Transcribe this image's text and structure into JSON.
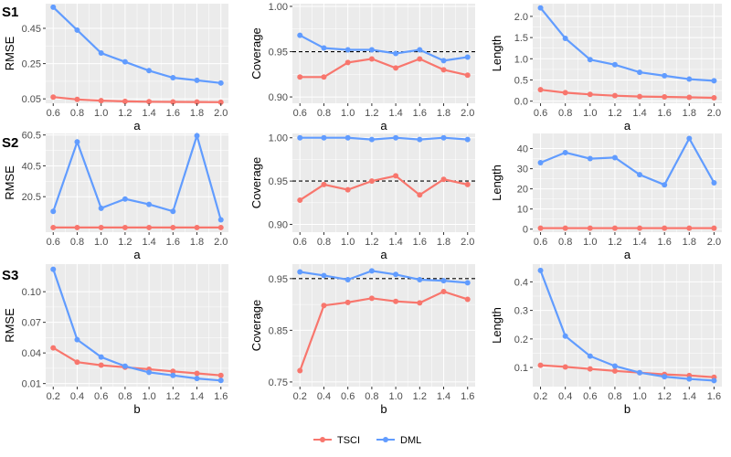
{
  "legend": {
    "items": [
      {
        "name": "TSCI",
        "color": "#F8766D"
      },
      {
        "name": "DML",
        "color": "#619CFF"
      }
    ]
  },
  "colors": {
    "panel_bg": "#EBEBEB",
    "grid": "#FFFFFF",
    "tick_text": "#4D4D4D"
  },
  "rows": [
    {
      "label": "S1"
    },
    {
      "label": "S2"
    },
    {
      "label": "S3"
    }
  ],
  "chart_data": [
    {
      "type": "line",
      "row": "S1",
      "ylabel": "RMSE",
      "xlabel": "a",
      "x": [
        0.6,
        0.8,
        1.0,
        1.2,
        1.4,
        1.6,
        1.8,
        2.0
      ],
      "xticks": [
        "0.6",
        "0.8",
        "1.0",
        "1.2",
        "1.4",
        "1.6",
        "1.8",
        "2.0"
      ],
      "yticks": [
        "0.05",
        "0.25",
        "0.45"
      ],
      "ytick_values": [
        0.05,
        0.25,
        0.45
      ],
      "ylim": [
        0.025,
        0.59
      ],
      "series": [
        {
          "name": "TSCI",
          "values": [
            0.06,
            0.047,
            0.04,
            0.036,
            0.034,
            0.033,
            0.032,
            0.031
          ]
        },
        {
          "name": "DML",
          "values": [
            0.57,
            0.44,
            0.31,
            0.26,
            0.21,
            0.17,
            0.155,
            0.14
          ]
        }
      ]
    },
    {
      "type": "line",
      "row": "S1",
      "ylabel": "Coverage",
      "xlabel": "a",
      "x": [
        0.6,
        0.8,
        1.0,
        1.2,
        1.4,
        1.6,
        1.8,
        2.0
      ],
      "xticks": [
        "0.6",
        "0.8",
        "1.0",
        "1.2",
        "1.4",
        "1.6",
        "1.8",
        "2.0"
      ],
      "yticks": [
        "0.90",
        "0.95",
        "1.00"
      ],
      "ytick_values": [
        0.9,
        0.95,
        1.0
      ],
      "ylim": [
        0.893,
        1.003
      ],
      "reference_line": 0.95,
      "series": [
        {
          "name": "TSCI",
          "values": [
            0.922,
            0.922,
            0.938,
            0.942,
            0.932,
            0.942,
            0.93,
            0.924
          ]
        },
        {
          "name": "DML",
          "values": [
            0.968,
            0.954,
            0.952,
            0.952,
            0.948,
            0.952,
            0.94,
            0.944
          ]
        }
      ]
    },
    {
      "type": "line",
      "row": "S1",
      "ylabel": "Length",
      "xlabel": "a",
      "x": [
        0.6,
        0.8,
        1.0,
        1.2,
        1.4,
        1.6,
        1.8,
        2.0
      ],
      "xticks": [
        "0.6",
        "0.8",
        "1.0",
        "1.2",
        "1.4",
        "1.6",
        "1.8",
        "2.0"
      ],
      "yticks": [
        "0.0",
        "0.5",
        "1.0",
        "1.5",
        "2.0"
      ],
      "ytick_values": [
        0.0,
        0.5,
        1.0,
        1.5,
        2.0
      ],
      "ylim": [
        -0.05,
        2.3
      ],
      "series": [
        {
          "name": "TSCI",
          "values": [
            0.27,
            0.2,
            0.16,
            0.13,
            0.11,
            0.1,
            0.09,
            0.08
          ]
        },
        {
          "name": "DML",
          "values": [
            2.2,
            1.48,
            0.98,
            0.86,
            0.68,
            0.6,
            0.52,
            0.48
          ]
        }
      ]
    },
    {
      "type": "line",
      "row": "S2",
      "ylabel": "RMSE",
      "xlabel": "a",
      "x": [
        0.6,
        0.8,
        1.0,
        1.2,
        1.4,
        1.6,
        1.8,
        2.0
      ],
      "xticks": [
        "0.6",
        "0.8",
        "1.0",
        "1.2",
        "1.4",
        "1.6",
        "1.8",
        "2.0"
      ],
      "yticks": [
        "20.5",
        "40.5",
        "60.5"
      ],
      "ytick_values": [
        20.5,
        40.5,
        60.5
      ],
      "ylim": [
        -2.5,
        61.5
      ],
      "series": [
        {
          "name": "TSCI",
          "values": [
            0.5,
            0.5,
            0.5,
            0.5,
            0.5,
            0.5,
            0.5,
            0.5
          ]
        },
        {
          "name": "DML",
          "values": [
            11,
            56,
            13,
            19,
            15.5,
            11,
            60,
            5.5
          ]
        }
      ]
    },
    {
      "type": "line",
      "row": "S2",
      "ylabel": "Coverage",
      "xlabel": "a",
      "x": [
        0.6,
        0.8,
        1.0,
        1.2,
        1.4,
        1.6,
        1.8,
        2.0
      ],
      "xticks": [
        "0.6",
        "0.8",
        "1.0",
        "1.2",
        "1.4",
        "1.6",
        "1.8",
        "2.0"
      ],
      "yticks": [
        "0.90",
        "0.95",
        "1.00"
      ],
      "ytick_values": [
        0.9,
        0.95,
        1.0
      ],
      "ylim": [
        0.891,
        1.005
      ],
      "reference_line": 0.95,
      "series": [
        {
          "name": "TSCI",
          "values": [
            0.928,
            0.946,
            0.94,
            0.95,
            0.956,
            0.934,
            0.952,
            0.946
          ]
        },
        {
          "name": "DML",
          "values": [
            1.0,
            1.0,
            1.0,
            0.998,
            1.0,
            0.998,
            1.0,
            0.998
          ]
        }
      ]
    },
    {
      "type": "line",
      "row": "S2",
      "ylabel": "Length",
      "xlabel": "a",
      "x": [
        0.6,
        0.8,
        1.0,
        1.2,
        1.4,
        1.6,
        1.8,
        2.0
      ],
      "xticks": [
        "0.6",
        "0.8",
        "1.0",
        "1.2",
        "1.4",
        "1.6",
        "1.8",
        "2.0"
      ],
      "yticks": [
        "0",
        "10",
        "20",
        "30",
        "40"
      ],
      "ytick_values": [
        0,
        10,
        20,
        30,
        40
      ],
      "ylim": [
        -1.5,
        47.5
      ],
      "series": [
        {
          "name": "TSCI",
          "values": [
            0.5,
            0.5,
            0.5,
            0.5,
            0.5,
            0.5,
            0.5,
            0.5
          ]
        },
        {
          "name": "DML",
          "values": [
            33,
            38,
            35,
            35.5,
            27,
            22,
            45,
            23
          ]
        }
      ]
    },
    {
      "type": "line",
      "row": "S3",
      "ylabel": "RMSE",
      "xlabel": "b",
      "x": [
        0.2,
        0.4,
        0.6,
        0.8,
        1.0,
        1.2,
        1.4,
        1.6
      ],
      "xticks": [
        "0.2",
        "0.4",
        "0.6",
        "0.8",
        "1.0",
        "1.2",
        "1.4",
        "1.6"
      ],
      "yticks": [
        "0.01",
        "0.04",
        "0.07",
        "0.10"
      ],
      "ytick_values": [
        0.01,
        0.04,
        0.07,
        0.1
      ],
      "ylim": [
        0.007,
        0.127
      ],
      "series": [
        {
          "name": "TSCI",
          "values": [
            0.045,
            0.031,
            0.028,
            0.026,
            0.024,
            0.022,
            0.02,
            0.018
          ]
        },
        {
          "name": "DML",
          "values": [
            0.122,
            0.053,
            0.036,
            0.027,
            0.021,
            0.018,
            0.015,
            0.013
          ]
        }
      ]
    },
    {
      "type": "line",
      "row": "S3",
      "ylabel": "Coverage",
      "xlabel": "b",
      "x": [
        0.2,
        0.4,
        0.6,
        0.8,
        1.0,
        1.2,
        1.4,
        1.6
      ],
      "xticks": [
        "0.2",
        "0.4",
        "0.6",
        "0.8",
        "1.0",
        "1.2",
        "1.4",
        "1.6"
      ],
      "yticks": [
        "0.75",
        "0.85",
        "0.95"
      ],
      "ytick_values": [
        0.75,
        0.85,
        0.95
      ],
      "ylim": [
        0.741,
        0.978
      ],
      "reference_line": 0.95,
      "series": [
        {
          "name": "TSCI",
          "values": [
            0.772,
            0.898,
            0.904,
            0.912,
            0.906,
            0.903,
            0.925,
            0.91
          ]
        },
        {
          "name": "DML",
          "values": [
            0.963,
            0.956,
            0.948,
            0.965,
            0.958,
            0.948,
            0.946,
            0.942
          ]
        }
      ]
    },
    {
      "type": "line",
      "row": "S3",
      "ylabel": "Length",
      "xlabel": "b",
      "x": [
        0.2,
        0.4,
        0.6,
        0.8,
        1.0,
        1.2,
        1.4,
        1.6
      ],
      "xticks": [
        "0.2",
        "0.4",
        "0.6",
        "0.8",
        "1.0",
        "1.2",
        "1.4",
        "1.6"
      ],
      "yticks": [
        "0.1",
        "0.2",
        "0.3",
        "0.4"
      ],
      "ytick_values": [
        0.1,
        0.2,
        0.3,
        0.4
      ],
      "ylim": [
        0.033,
        0.462
      ],
      "series": [
        {
          "name": "TSCI",
          "values": [
            0.108,
            0.102,
            0.095,
            0.088,
            0.082,
            0.076,
            0.072,
            0.066
          ]
        },
        {
          "name": "DML",
          "values": [
            0.44,
            0.21,
            0.14,
            0.105,
            0.082,
            0.068,
            0.06,
            0.054
          ]
        }
      ]
    }
  ]
}
